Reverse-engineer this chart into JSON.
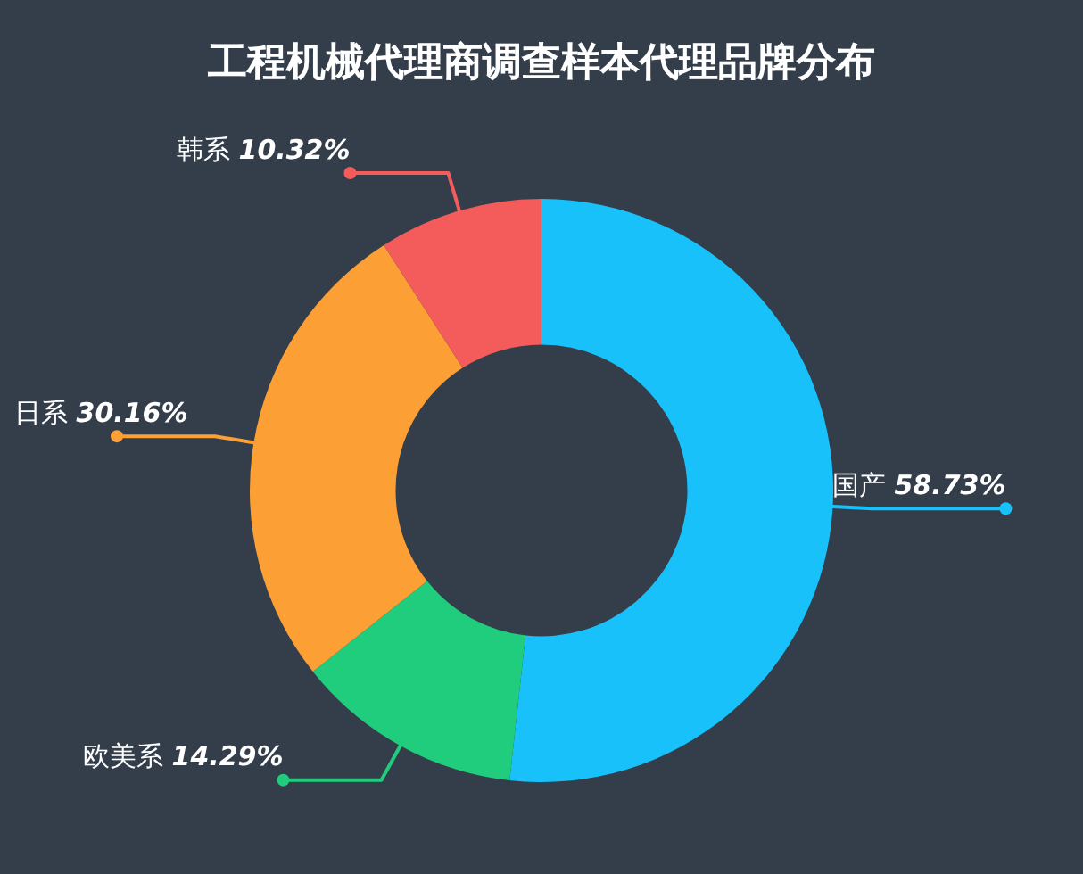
{
  "chart_data": {
    "type": "donut",
    "title": "工程机械代理商调查样本代理品牌分布",
    "categories": [
      "国产",
      "欧美系",
      "日系",
      "韩系"
    ],
    "values": [
      58.73,
      14.29,
      30.16,
      10.32
    ],
    "value_labels": [
      "58.73%",
      "14.29%",
      "30.16%",
      "10.32%"
    ],
    "colors": [
      "#19c1fb",
      "#1fcd7c",
      "#fca036",
      "#f45c5c"
    ],
    "legend": false
  }
}
